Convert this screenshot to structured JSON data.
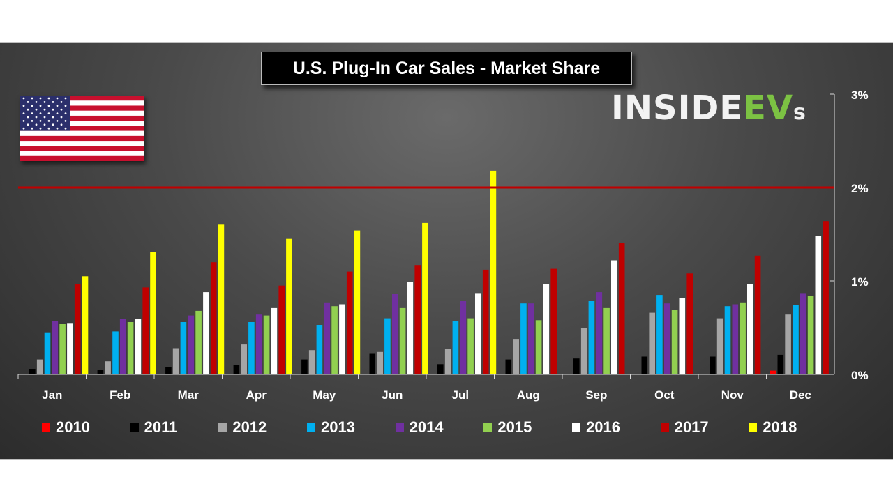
{
  "chart_data": {
    "type": "bar",
    "title": "U.S. Plug-In Car Sales - Market Share",
    "categories": [
      "Jan",
      "Feb",
      "Mar",
      "Apr",
      "May",
      "Jun",
      "Jul",
      "Aug",
      "Sep",
      "Oct",
      "Nov",
      "Dec"
    ],
    "y_ticks": [
      "0%",
      "1%",
      "2%",
      "3%"
    ],
    "ylim": [
      0,
      3
    ],
    "reference_line": {
      "value": 2.0,
      "color": "#c00000"
    },
    "legend_position": "bottom",
    "series": [
      {
        "name": "2010",
        "color": "#ff0000",
        "values": [
          null,
          null,
          null,
          null,
          null,
          null,
          null,
          null,
          null,
          null,
          null,
          0.04
        ]
      },
      {
        "name": "2011",
        "color": "#000000",
        "values": [
          0.06,
          0.05,
          0.08,
          0.1,
          0.16,
          0.22,
          0.11,
          0.16,
          0.17,
          0.19,
          0.19,
          0.21
        ]
      },
      {
        "name": "2012",
        "color": "#a6a6a6",
        "values": [
          0.16,
          0.14,
          0.28,
          0.32,
          0.26,
          0.24,
          0.27,
          0.38,
          0.5,
          0.66,
          0.6,
          0.64
        ]
      },
      {
        "name": "2013",
        "color": "#00b0f0",
        "values": [
          0.45,
          0.46,
          0.56,
          0.56,
          0.53,
          0.6,
          0.57,
          0.76,
          0.79,
          0.85,
          0.73,
          0.74
        ]
      },
      {
        "name": "2014",
        "color": "#7030a0",
        "values": [
          0.57,
          0.59,
          0.63,
          0.64,
          0.77,
          0.86,
          0.79,
          0.76,
          0.88,
          0.76,
          0.75,
          0.87
        ]
      },
      {
        "name": "2015",
        "color": "#92d050",
        "values": [
          0.54,
          0.56,
          0.68,
          0.63,
          0.73,
          0.71,
          0.6,
          0.58,
          0.71,
          0.69,
          0.77,
          0.84
        ]
      },
      {
        "name": "2016",
        "color": "#ffffff",
        "values": [
          0.55,
          0.59,
          0.88,
          0.71,
          0.75,
          0.99,
          0.87,
          0.97,
          1.22,
          0.82,
          0.97,
          1.48
        ]
      },
      {
        "name": "2017",
        "color": "#c00000",
        "values": [
          0.97,
          0.93,
          1.2,
          0.95,
          1.1,
          1.17,
          1.12,
          1.13,
          1.41,
          1.08,
          1.27,
          1.64
        ]
      },
      {
        "name": "2018",
        "color": "#ffff00",
        "values": [
          1.05,
          1.31,
          1.61,
          1.45,
          1.54,
          1.62,
          2.18,
          null,
          null,
          null,
          null,
          null
        ]
      }
    ]
  },
  "flag": {
    "stripe_red": "#c8102e",
    "stripe_white": "#ffffff",
    "canton": "#2b2f6b",
    "icon": "us-flag-icon"
  },
  "logo": {
    "part1": "INSIDE",
    "part2": "EV",
    "part3": "s"
  }
}
